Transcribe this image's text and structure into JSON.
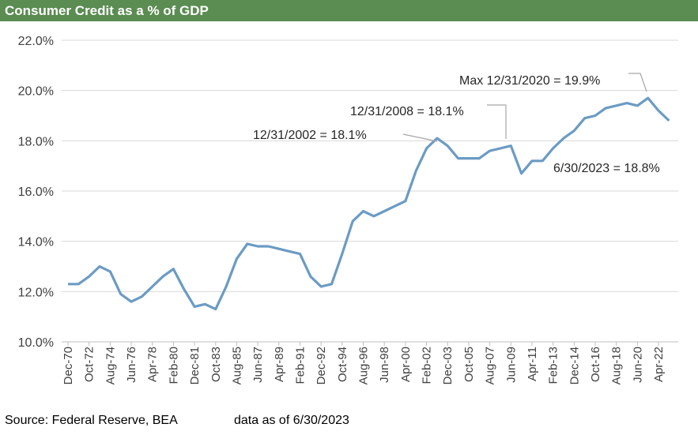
{
  "chart_data": {
    "type": "line",
    "title": "Consumer Credit as a % of GDP",
    "source": "Source: Federal Reserve, BEA",
    "note": "data as of 6/30/2023",
    "categories": [
      "Dec-70",
      null,
      "Oct-72",
      null,
      "Aug-74",
      null,
      "Jun-76",
      null,
      "Apr-78",
      null,
      "Feb-80",
      null,
      "Dec-81",
      null,
      "Oct-83",
      null,
      "Aug-85",
      null,
      "Jun-87",
      null,
      "Apr-89",
      null,
      "Feb-91",
      null,
      "Dec-92",
      null,
      "Oct-94",
      null,
      "Aug-96",
      null,
      "Jun-98",
      null,
      "Apr-00",
      null,
      "Feb-02",
      null,
      "Dec-03",
      null,
      "Oct-05",
      null,
      "Aug-07",
      null,
      "Jun-09",
      null,
      "Apr-11",
      null,
      "Feb-13",
      null,
      "Dec-14",
      null,
      "Oct-16",
      null,
      "Aug-18",
      null,
      "Jun-20",
      null,
      "Apr-22",
      null
    ],
    "series": [
      {
        "name": "Consumer Credit as a % of GDP",
        "color": "#6b9bc4",
        "values": [
          12.3,
          12.3,
          12.6,
          13.0,
          12.8,
          11.9,
          11.6,
          11.8,
          12.2,
          12.6,
          12.9,
          12.1,
          11.4,
          11.5,
          11.3,
          12.2,
          13.3,
          13.9,
          13.8,
          13.8,
          13.7,
          13.6,
          13.5,
          12.6,
          12.2,
          12.3,
          13.5,
          14.8,
          15.2,
          15.0,
          15.2,
          15.4,
          15.6,
          16.8,
          17.7,
          18.1,
          17.8,
          17.3,
          17.3,
          17.3,
          17.6,
          17.7,
          17.8,
          16.7,
          17.2,
          17.2,
          17.7,
          18.1,
          18.4,
          18.9,
          19.0,
          19.3,
          19.4,
          19.5,
          19.4,
          19.7,
          19.2,
          18.8
        ]
      }
    ],
    "ylim": [
      10,
      22
    ],
    "yticks": [
      {
        "value": 10,
        "label": "10.0%"
      },
      {
        "value": 12,
        "label": "12.0%"
      },
      {
        "value": 14,
        "label": "14.0%"
      },
      {
        "value": 16,
        "label": "16.0%"
      },
      {
        "value": 18,
        "label": "18.0%"
      },
      {
        "value": 20,
        "label": "20.0%"
      },
      {
        "value": 22,
        "label": "22.0%"
      }
    ],
    "grid": true,
    "annotations": [
      "Max 12/31/2020 = 19.9%",
      "12/31/2008 = 18.1%",
      "12/31/2002 = 18.1%",
      "6/30/2023 = 18.8%"
    ]
  }
}
